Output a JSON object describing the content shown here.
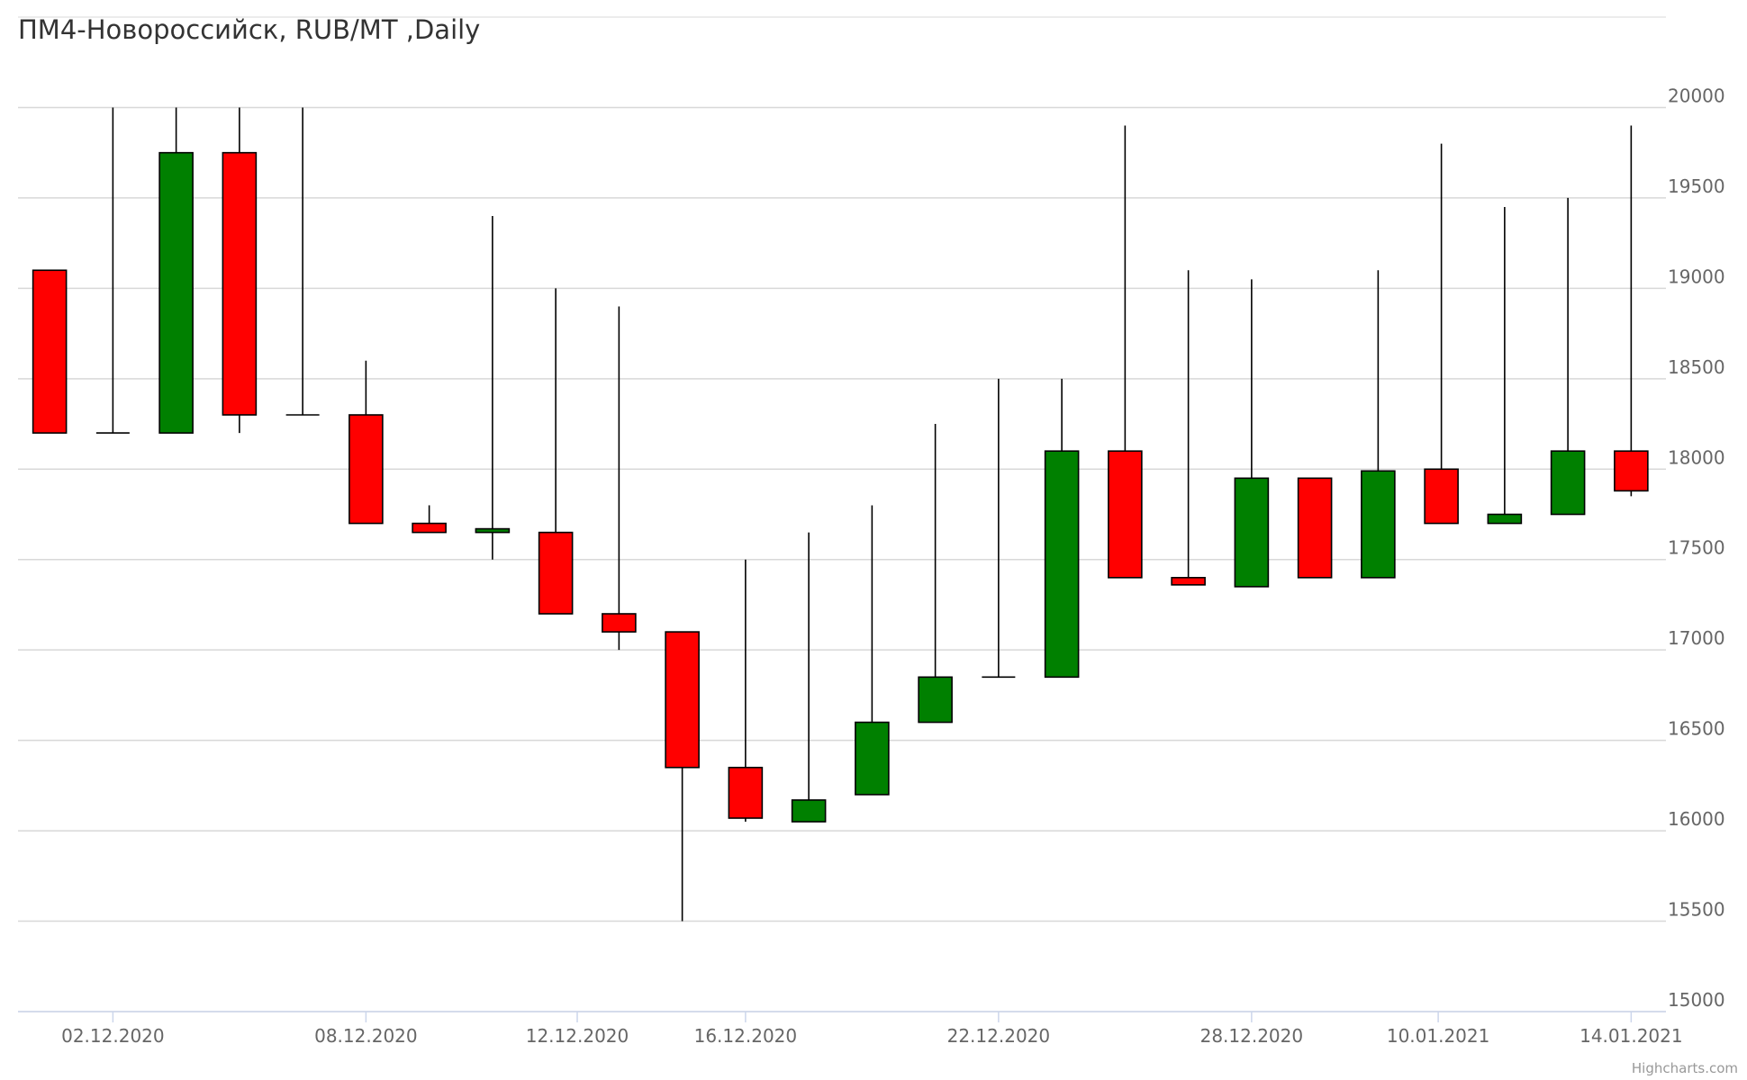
{
  "chart_data": {
    "type": "candlestick",
    "title": "ПМ4-Новороссийск, RUB/MT ,Daily",
    "credits": "Highcharts.com",
    "x": [
      0,
      1,
      2,
      3,
      4,
      5,
      6,
      7,
      8,
      9,
      10,
      11,
      12,
      13,
      14,
      15,
      16,
      17,
      18,
      19,
      20,
      21,
      22,
      23,
      24,
      25
    ],
    "open": [
      19100,
      18200,
      18200,
      19750,
      18300,
      18300,
      17700,
      17650,
      17650,
      17200,
      17100,
      16350,
      16050,
      16200,
      16600,
      16850,
      16850,
      18100,
      17400,
      17350,
      17950,
      17400,
      18000,
      17700,
      17750,
      18100
    ],
    "high": [
      19100,
      20000,
      20000,
      20000,
      20000,
      18600,
      17800,
      19400,
      19000,
      18900,
      17100,
      17500,
      17650,
      17800,
      18250,
      18500,
      18500,
      19900,
      19100,
      19050,
      17950,
      19100,
      19800,
      19450,
      19500,
      19900
    ],
    "low": [
      18200,
      18200,
      18200,
      18200,
      18300,
      17700,
      17650,
      17500,
      17200,
      17000,
      15500,
      16050,
      16050,
      16200,
      16600,
      16850,
      16850,
      17400,
      17360,
      17350,
      17400,
      17400,
      17700,
      17700,
      17750,
      17850
    ],
    "close": [
      18200,
      18200,
      19750,
      18300,
      18300,
      17700,
      17650,
      17670,
      17200,
      17100,
      16350,
      16070,
      16170,
      16600,
      16850,
      16850,
      18100,
      17400,
      17360,
      17950,
      17400,
      17990,
      17700,
      17750,
      18100,
      17880
    ],
    "up_color": "#008000",
    "down_color": "#ff0000",
    "xlim": [
      -0.5,
      25.55
    ],
    "xticks": [
      {
        "value": 1,
        "label": "02.12.2020"
      },
      {
        "value": 5,
        "label": "08.12.2020"
      },
      {
        "value": 8.34,
        "label": "12.12.2020"
      },
      {
        "value": 11,
        "label": "16.12.2020"
      },
      {
        "value": 15,
        "label": "22.12.2020"
      },
      {
        "value": 19,
        "label": "28.12.2020"
      },
      {
        "value": 21.95,
        "label": "10.01.2021"
      },
      {
        "value": 25,
        "label": "14.01.2021"
      }
    ],
    "ylim": [
      15000,
      20500
    ],
    "yticks": [
      15000,
      15500,
      16000,
      16500,
      17000,
      17500,
      18000,
      18500,
      19000,
      19500,
      20000
    ],
    "grid": true
  }
}
